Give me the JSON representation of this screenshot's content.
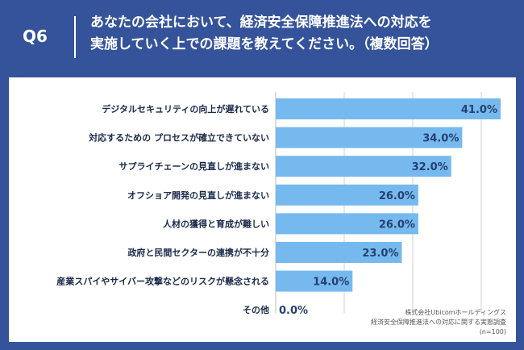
{
  "header": {
    "qlabel": "Q6",
    "title_line1": "あなたの会社において、経済安全保障推進法への対応を",
    "title_line2": "実施していく上での課題を教えてください。（複数回答）"
  },
  "source": {
    "line1": "株式会社Ubicomホールディングス",
    "line2": "経済安全保障推進法への対応に関する実態調査",
    "line3": "(n=100)"
  },
  "colors": {
    "background": "#35539a",
    "bar": "#76b9ee",
    "grid": "#d0d0d0",
    "label": "#1a2a4a"
  },
  "chart_data": {
    "type": "bar",
    "orientation": "horizontal",
    "categories": [
      "デジタルセキュリティの向上が遅れている",
      "対応するための プロセスが確立できていない",
      "サプライチェーンの見直しが進まない",
      "オフショア開発の見直しが進まない",
      "人材の獲得と育成が難しい",
      "政府と民間セクターの連携が不十分",
      "産業スパイやサイバー攻撃などのリスクが懸念される",
      "その他"
    ],
    "values": [
      41.0,
      34.0,
      32.0,
      26.0,
      26.0,
      23.0,
      14.0,
      0.0
    ],
    "value_labels": [
      "41.0%",
      "34.0%",
      "32.0%",
      "26.0%",
      "26.0%",
      "23.0%",
      "14.0%",
      "0.0%"
    ],
    "xlim": [
      0,
      41
    ],
    "grid": true
  }
}
